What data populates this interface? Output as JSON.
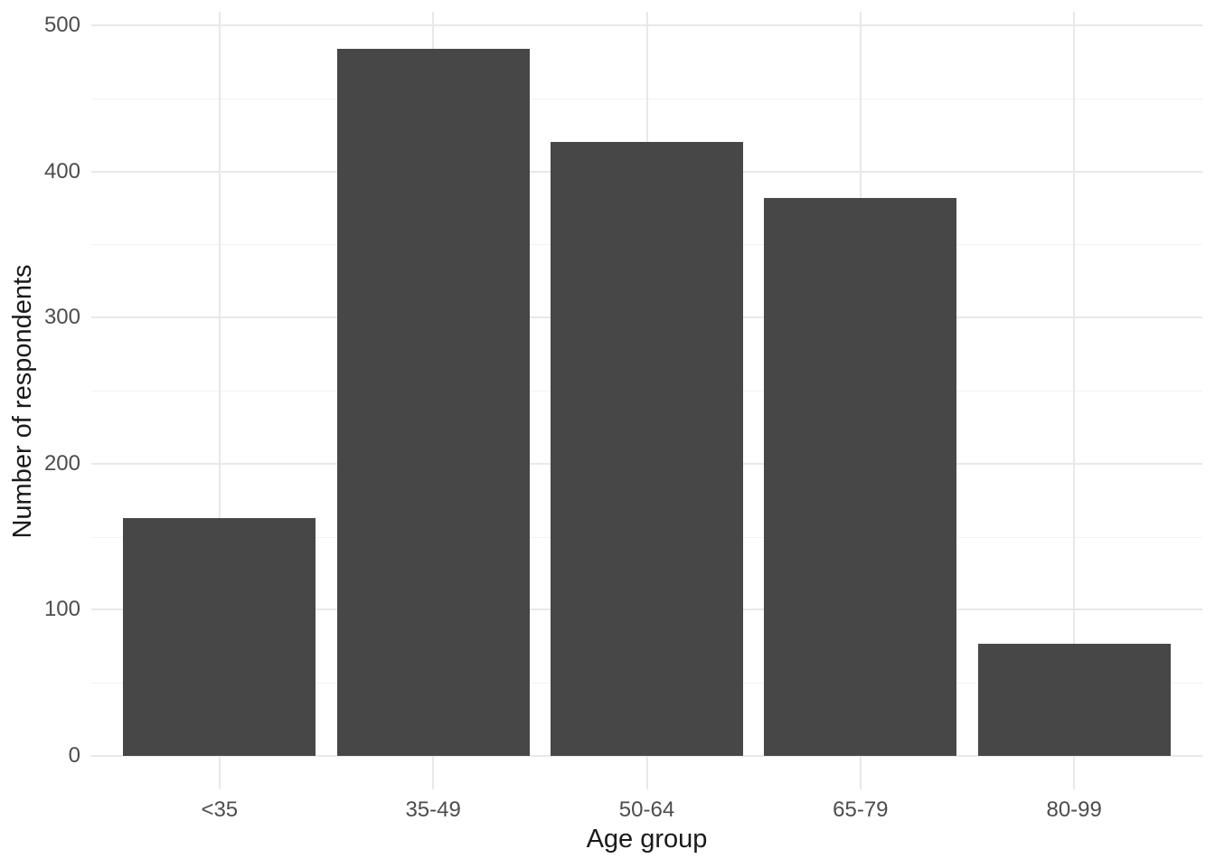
{
  "chart_data": {
    "type": "bar",
    "title": "",
    "xlabel": "Age group",
    "ylabel": "Number of respondents",
    "categories": [
      "<35",
      "35-49",
      "50-64",
      "65-79",
      "80-99"
    ],
    "values": [
      163,
      484,
      420,
      382,
      77
    ],
    "y_axis": {
      "major_ticks": [
        0,
        100,
        200,
        300,
        400,
        500
      ],
      "minor_ticks": [
        50,
        150,
        250,
        350,
        450
      ],
      "ylim": [
        0,
        500
      ]
    },
    "x_axis": {
      "gridlines_at_category_centers": true
    },
    "legend": "none",
    "grid": "on",
    "style": {
      "bar_color": "#474747",
      "background_color": "#ffffff",
      "grid_major_color": "#e8e8e8",
      "grid_minor_color": "#f2f2f2",
      "tick_label_color": "#4d4d4d",
      "axis_title_color": "#1a1a1a"
    }
  }
}
